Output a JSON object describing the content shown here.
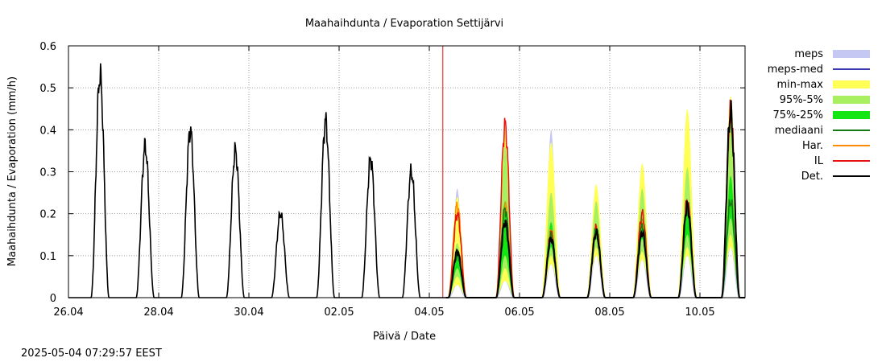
{
  "chart_data": {
    "type": "line",
    "title": "Maahaihdunta / Evaporation  Settijärvi",
    "xlabel": "Päivä / Date",
    "ylabel": "Maahaihdunta / Evaporation (mm/h)",
    "x_range_days": [
      0,
      15
    ],
    "x_ticks": [
      {
        "day": 0,
        "label": "26.04"
      },
      {
        "day": 2,
        "label": "28.04"
      },
      {
        "day": 4,
        "label": "30.04"
      },
      {
        "day": 6,
        "label": "02.05"
      },
      {
        "day": 8,
        "label": "04.05"
      },
      {
        "day": 10,
        "label": "06.05"
      },
      {
        "day": 12,
        "label": "08.05"
      },
      {
        "day": 14,
        "label": "10.05"
      }
    ],
    "ylim": [
      0,
      0.6
    ],
    "y_ticks": [
      "0",
      "0.1",
      "0.2",
      "0.3",
      "0.4",
      "0.5",
      "0.6"
    ],
    "grid": true,
    "legend_position": "right",
    "forecast_start_day": 8.3,
    "timestamp": "2025-05-04 07:29:57 EEST",
    "legend": [
      {
        "label": "meps",
        "kind": "band",
        "color": "#c4c8f2"
      },
      {
        "label": "meps-med",
        "kind": "line",
        "color": "#3a3ab0"
      },
      {
        "label": "min-max",
        "kind": "band",
        "color": "#ffff55"
      },
      {
        "label": "95%-5%",
        "kind": "band",
        "color": "#a8f060"
      },
      {
        "label": "75%-25%",
        "kind": "band",
        "color": "#14e614"
      },
      {
        "label": "mediaani",
        "kind": "line",
        "color": "#157a15"
      },
      {
        "label": "Har.",
        "kind": "line",
        "color": "#ff8c00"
      },
      {
        "label": "IL",
        "kind": "line",
        "color": "#e81010"
      },
      {
        "label": "Det.",
        "kind": "line",
        "color": "#000000"
      }
    ],
    "observed_peaks": [
      {
        "day": 0.7,
        "value": 0.53
      },
      {
        "day": 1.7,
        "value": 0.36
      },
      {
        "day": 2.7,
        "value": 0.4
      },
      {
        "day": 3.7,
        "value": 0.35
      },
      {
        "day": 4.7,
        "value": 0.2
      },
      {
        "day": 5.7,
        "value": 0.42
      },
      {
        "day": 6.7,
        "value": 0.33
      },
      {
        "day": 7.6,
        "value": 0.3
      }
    ],
    "forecast_days": [
      {
        "day": 8.62,
        "det": 0.11,
        "median": 0.1,
        "il": 0.2,
        "har": 0.22,
        "p75": 0.1,
        "p25": 0.07,
        "p95": 0.13,
        "p5": 0.05,
        "max": 0.24,
        "min": 0.03,
        "meps": 0.26
      },
      {
        "day": 9.68,
        "det": 0.18,
        "median": 0.21,
        "il": 0.41,
        "har": 0.22,
        "p75": 0.23,
        "p25": 0.1,
        "p95": 0.36,
        "p5": 0.07,
        "max": 0.41,
        "min": 0.04,
        "meps": 0.37
      },
      {
        "day": 10.7,
        "det": 0.14,
        "median": 0.15,
        "il": 0.15,
        "har": 0.16,
        "p75": 0.18,
        "p25": 0.12,
        "p95": 0.25,
        "p5": 0.1,
        "max": 0.37,
        "min": 0.08,
        "meps": 0.4
      },
      {
        "day": 11.7,
        "det": 0.155,
        "median": 0.16,
        "il": 0.165,
        "har": 0.16,
        "p75": 0.17,
        "p25": 0.14,
        "p95": 0.23,
        "p5": 0.12,
        "max": 0.27,
        "min": 0.1,
        "meps": 0.18
      },
      {
        "day": 12.72,
        "det": 0.155,
        "median": 0.17,
        "il": 0.2,
        "har": 0.18,
        "p75": 0.19,
        "p25": 0.14,
        "p95": 0.26,
        "p5": 0.11,
        "max": 0.32,
        "min": 0.09,
        "meps": 0.2
      },
      {
        "day": 13.72,
        "det": 0.22,
        "median": 0.21,
        "il": 0.23,
        "har": 0.22,
        "p75": 0.22,
        "p25": 0.15,
        "p95": 0.31,
        "p5": 0.12,
        "max": 0.45,
        "min": 0.1,
        "meps": 0.24
      },
      {
        "day": 14.68,
        "det": 0.44,
        "median": 0.23,
        "il": 0.44,
        "har": 0.43,
        "p75": 0.29,
        "p25": 0.19,
        "p95": 0.43,
        "p5": 0.15,
        "max": 0.48,
        "min": 0.12,
        "meps": 0.3
      }
    ]
  }
}
